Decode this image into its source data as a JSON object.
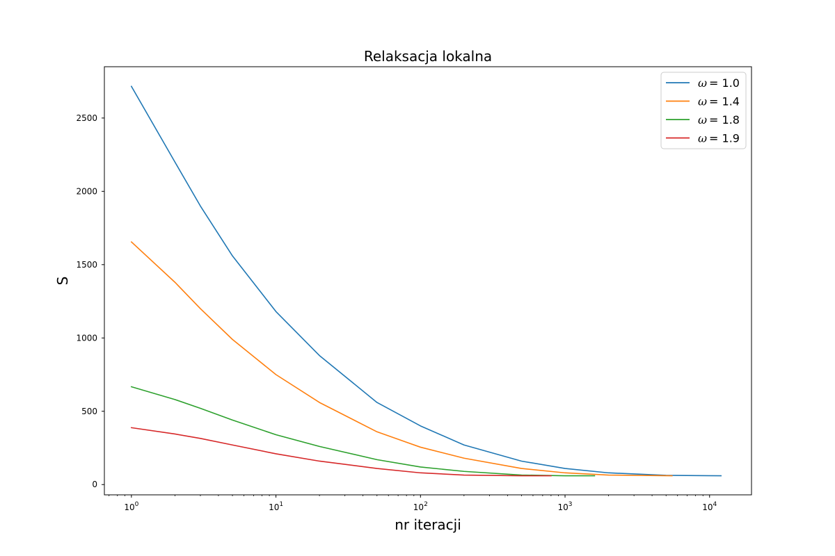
{
  "chart_data": {
    "type": "line",
    "title": "Relaksacja lokalna",
    "xlabel": "nr iteracji",
    "ylabel": "S",
    "xscale": "log",
    "xlim": [
      0.65,
      19500
    ],
    "ylim": [
      -70,
      2850
    ],
    "xticks": [
      1,
      10,
      100,
      1000,
      10000
    ],
    "xtick_labels": [
      {
        "base": "10",
        "exp": "0"
      },
      {
        "base": "10",
        "exp": "1"
      },
      {
        "base": "10",
        "exp": "2"
      },
      {
        "base": "10",
        "exp": "3"
      },
      {
        "base": "10",
        "exp": "4"
      }
    ],
    "yticks": [
      0,
      500,
      1000,
      1500,
      2000,
      2500
    ],
    "ytick_labels": [
      "0",
      "500",
      "1000",
      "1500",
      "2000",
      "2500"
    ],
    "grid": false,
    "legend_position": "top-right",
    "series": [
      {
        "name": "ω = 1.0",
        "legend_symbol": "ω",
        "legend_value": "= 1.0",
        "color": "#1f77b4",
        "x": [
          1,
          2,
          3,
          5,
          10,
          20,
          50,
          100,
          200,
          500,
          1000,
          2000,
          5000,
          12000
        ],
        "y": [
          2716,
          2200,
          1900,
          1560,
          1180,
          880,
          560,
          400,
          270,
          160,
          110,
          80,
          63,
          60
        ]
      },
      {
        "name": "ω = 1.4",
        "legend_symbol": "ω",
        "legend_value": "= 1.4",
        "color": "#ff7f0e",
        "x": [
          1,
          2,
          3,
          5,
          10,
          20,
          50,
          100,
          200,
          500,
          1000,
          2000,
          5500
        ],
        "y": [
          1655,
          1380,
          1200,
          990,
          750,
          560,
          360,
          255,
          180,
          110,
          80,
          65,
          60
        ]
      },
      {
        "name": "ω = 1.8",
        "legend_symbol": "ω",
        "legend_value": "= 1.8",
        "color": "#2ca02c",
        "x": [
          1,
          2,
          3,
          5,
          10,
          20,
          50,
          100,
          200,
          500,
          1000,
          1600
        ],
        "y": [
          667,
          580,
          520,
          440,
          340,
          260,
          170,
          120,
          90,
          65,
          60,
          60
        ]
      },
      {
        "name": "ω = 1.9",
        "legend_symbol": "ω",
        "legend_value": "= 1.9",
        "color": "#d62728",
        "x": [
          1,
          2,
          3,
          5,
          10,
          20,
          50,
          100,
          200,
          500,
          800
        ],
        "y": [
          388,
          345,
          315,
          270,
          210,
          160,
          110,
          80,
          65,
          60,
          60
        ]
      }
    ]
  }
}
